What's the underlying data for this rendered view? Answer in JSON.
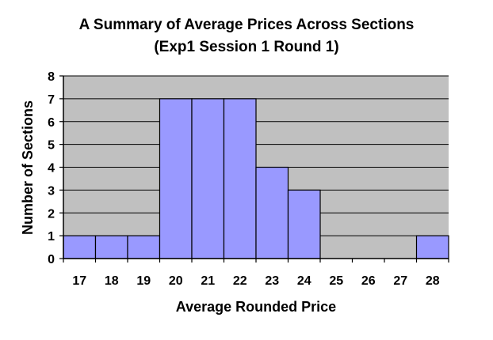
{
  "chart_data": {
    "type": "bar",
    "title_lines": [
      "A Summary of Average Prices Across Sections",
      "(Exp1 Session 1 Round 1)"
    ],
    "xlabel": "Average Rounded Price",
    "ylabel": "Number of Sections",
    "categories": [
      "17",
      "18",
      "19",
      "20",
      "21",
      "22",
      "23",
      "24",
      "25",
      "26",
      "27",
      "28"
    ],
    "values": [
      1,
      1,
      1,
      7,
      7,
      7,
      4,
      3,
      0,
      0,
      0,
      1
    ],
    "ylim": [
      0,
      8
    ],
    "yticks": [
      "0",
      "1",
      "2",
      "3",
      "4",
      "5",
      "6",
      "7",
      "8"
    ],
    "grid": true,
    "legend": "none",
    "colors": {
      "bar_fill": "#9999FF",
      "plot_background": "#C0C0C0",
      "gridline": "#000000",
      "bar_stroke": "#000000"
    }
  }
}
